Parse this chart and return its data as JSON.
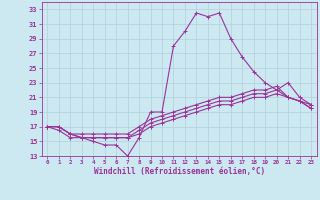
{
  "xlabel": "Windchill (Refroidissement éolien,°C)",
  "xlim": [
    -0.5,
    23.5
  ],
  "ylim": [
    13,
    34
  ],
  "yticks": [
    13,
    15,
    17,
    19,
    21,
    23,
    25,
    27,
    29,
    31,
    33
  ],
  "xticks": [
    0,
    1,
    2,
    3,
    4,
    5,
    6,
    7,
    8,
    9,
    10,
    11,
    12,
    13,
    14,
    15,
    16,
    17,
    18,
    19,
    20,
    21,
    22,
    23
  ],
  "bg_color": "#cce8f0",
  "grid_color": "#b0d0dc",
  "line_color": "#993399",
  "curve1_x": [
    0,
    1,
    2,
    3,
    4,
    5,
    6,
    7,
    8,
    9,
    10,
    11,
    12,
    13,
    14,
    15,
    16,
    17,
    18,
    19,
    20,
    21,
    22,
    23
  ],
  "curve1_y": [
    17,
    16.5,
    15.5,
    15.5,
    15,
    14.5,
    14.5,
    13,
    15.5,
    19,
    19,
    28,
    30,
    32.5,
    32,
    32.5,
    29,
    26.5,
    24.5,
    23,
    22,
    23,
    21,
    20
  ],
  "curve2_x": [
    0,
    1,
    2,
    3,
    4,
    5,
    6,
    7,
    8,
    9,
    10,
    11,
    12,
    13,
    14,
    15,
    16,
    17,
    18,
    19,
    20,
    21,
    22,
    23
  ],
  "curve2_y": [
    17,
    17,
    16,
    16,
    16,
    16,
    16,
    16,
    17,
    18,
    18.5,
    19,
    19.5,
    20,
    20.5,
    21,
    21,
    21.5,
    22,
    22,
    22.5,
    21,
    20.5,
    20
  ],
  "curve3_x": [
    0,
    1,
    2,
    3,
    4,
    5,
    6,
    7,
    8,
    9,
    10,
    11,
    12,
    13,
    14,
    15,
    16,
    17,
    18,
    19,
    20,
    21,
    22,
    23
  ],
  "curve3_y": [
    17,
    17,
    16,
    15.5,
    15.5,
    15.5,
    15.5,
    15.5,
    16.5,
    17.5,
    18,
    18.5,
    19,
    19.5,
    20,
    20.5,
    20.5,
    21,
    21.5,
    21.5,
    22,
    21,
    20.5,
    19.5
  ],
  "curve4_x": [
    0,
    1,
    2,
    3,
    4,
    5,
    6,
    7,
    8,
    9,
    10,
    11,
    12,
    13,
    14,
    15,
    16,
    17,
    18,
    19,
    20,
    21,
    22,
    23
  ],
  "curve4_y": [
    17,
    17,
    16,
    15.5,
    15.5,
    15.5,
    15.5,
    15.5,
    16,
    17,
    17.5,
    18,
    18.5,
    19,
    19.5,
    20,
    20,
    20.5,
    21,
    21,
    21.5,
    21,
    20.5,
    19.5
  ]
}
